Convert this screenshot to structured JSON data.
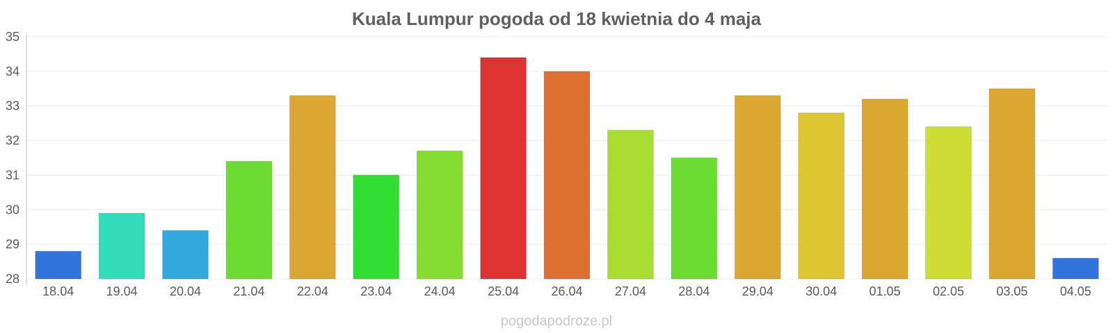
{
  "chart_data": {
    "type": "bar",
    "title": "Kuala Lumpur pogoda od 18 kwietnia do 4 maja",
    "xlabel": "",
    "ylabel": "",
    "ylim": [
      28,
      35
    ],
    "yticks": [
      "35",
      "34",
      "33",
      "32",
      "31",
      "30",
      "29",
      "28"
    ],
    "categories": [
      "18.04",
      "19.04",
      "20.04",
      "21.04",
      "22.04",
      "23.04",
      "24.04",
      "25.04",
      "26.04",
      "27.04",
      "28.04",
      "29.04",
      "30.04",
      "01.05",
      "02.05",
      "03.05",
      "04.05"
    ],
    "values": [
      28.8,
      29.9,
      29.4,
      31.4,
      33.3,
      31.0,
      31.7,
      34.4,
      34.0,
      32.3,
      31.5,
      33.3,
      32.8,
      33.2,
      32.4,
      33.5,
      28.6
    ],
    "colors": [
      "#3373DE",
      "#33DDBB",
      "#33A8DD",
      "#6EDD33",
      "#DDA733",
      "#33DD33",
      "#85DD33",
      "#DD3333",
      "#DD7033",
      "#AADD33",
      "#6EDD33",
      "#DDA733",
      "#DDC533",
      "#DDA733",
      "#CCDD33",
      "#DDA733",
      "#3373DE"
    ],
    "grid": true,
    "legend": "none"
  },
  "watermark": "pogodapodroze.pl"
}
